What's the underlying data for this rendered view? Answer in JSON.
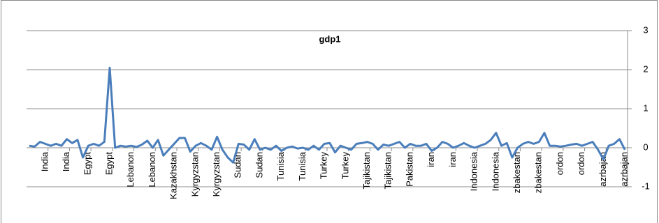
{
  "chart_data": {
    "type": "line",
    "title": "gdp1",
    "categories": [
      null,
      null,
      null,
      "India",
      null,
      null,
      null,
      "India",
      null,
      null,
      null,
      "Egypt",
      null,
      null,
      null,
      "Egypt",
      null,
      null,
      null,
      "Lebanon",
      null,
      null,
      null,
      "Lebanon",
      null,
      null,
      null,
      "Kazakhstan",
      null,
      null,
      null,
      "Kyrgyzstan",
      null,
      null,
      null,
      "Kyrgyzstan",
      null,
      null,
      null,
      "Sudan",
      null,
      null,
      null,
      "Sudan",
      null,
      null,
      null,
      "Tunisia",
      null,
      null,
      null,
      "Tunisia",
      null,
      null,
      null,
      "Turkey",
      null,
      null,
      null,
      "Turkey",
      null,
      null,
      null,
      "Tajikistan",
      null,
      null,
      null,
      "Tajikistan",
      null,
      null,
      null,
      "Pakistan",
      null,
      null,
      null,
      "iran",
      null,
      null,
      null,
      "iran",
      null,
      null,
      null,
      "Indonesia",
      null,
      null,
      null,
      "Indonesia",
      null,
      null,
      null,
      "zbakestan",
      null,
      null,
      null,
      "zbakestan",
      null,
      null,
      null,
      "ordon",
      null,
      null,
      null,
      "ordon",
      null,
      null,
      null,
      "azrbajan",
      null,
      null,
      null,
      "azrbajan"
    ],
    "series": [
      {
        "name": "gdp1",
        "color": "#4a7ebb",
        "values": [
          0.05,
          0.03,
          0.15,
          0.1,
          0.05,
          0.1,
          0.05,
          0.22,
          0.12,
          0.2,
          -0.25,
          0.05,
          0.1,
          0.05,
          0.15,
          2.05,
          0.0,
          0.05,
          0.03,
          0.05,
          0.02,
          0.08,
          0.18,
          0.0,
          0.2,
          -0.2,
          -0.05,
          0.1,
          0.25,
          0.25,
          -0.1,
          0.05,
          0.12,
          0.05,
          -0.05,
          0.28,
          -0.05,
          -0.25,
          -0.38,
          0.1,
          0.08,
          -0.05,
          0.22,
          -0.05,
          0.0,
          -0.05,
          0.05,
          -0.08,
          0.0,
          0.03,
          -0.02,
          0.0,
          -0.05,
          0.05,
          -0.05,
          0.1,
          0.12,
          -0.12,
          0.05,
          0.0,
          -0.05,
          0.1,
          0.12,
          0.15,
          0.1,
          -0.05,
          0.08,
          0.05,
          0.1,
          0.15,
          0.0,
          0.1,
          0.05,
          0.05,
          0.1,
          -0.08,
          0.0,
          0.15,
          0.1,
          0.0,
          0.05,
          0.12,
          0.05,
          0.0,
          0.05,
          0.1,
          0.2,
          0.38,
          0.05,
          0.12,
          -0.25,
          0.0,
          0.1,
          0.15,
          0.1,
          0.15,
          0.38,
          0.05,
          0.05,
          0.03,
          0.05,
          0.08,
          0.1,
          0.05,
          0.1,
          0.15,
          -0.05,
          -0.3,
          0.05,
          0.1,
          0.22,
          -0.05
        ]
      }
    ],
    "ylim": [
      -1,
      3
    ],
    "yticks": [
      -1,
      0,
      1,
      2,
      3
    ],
    "grid": true
  }
}
